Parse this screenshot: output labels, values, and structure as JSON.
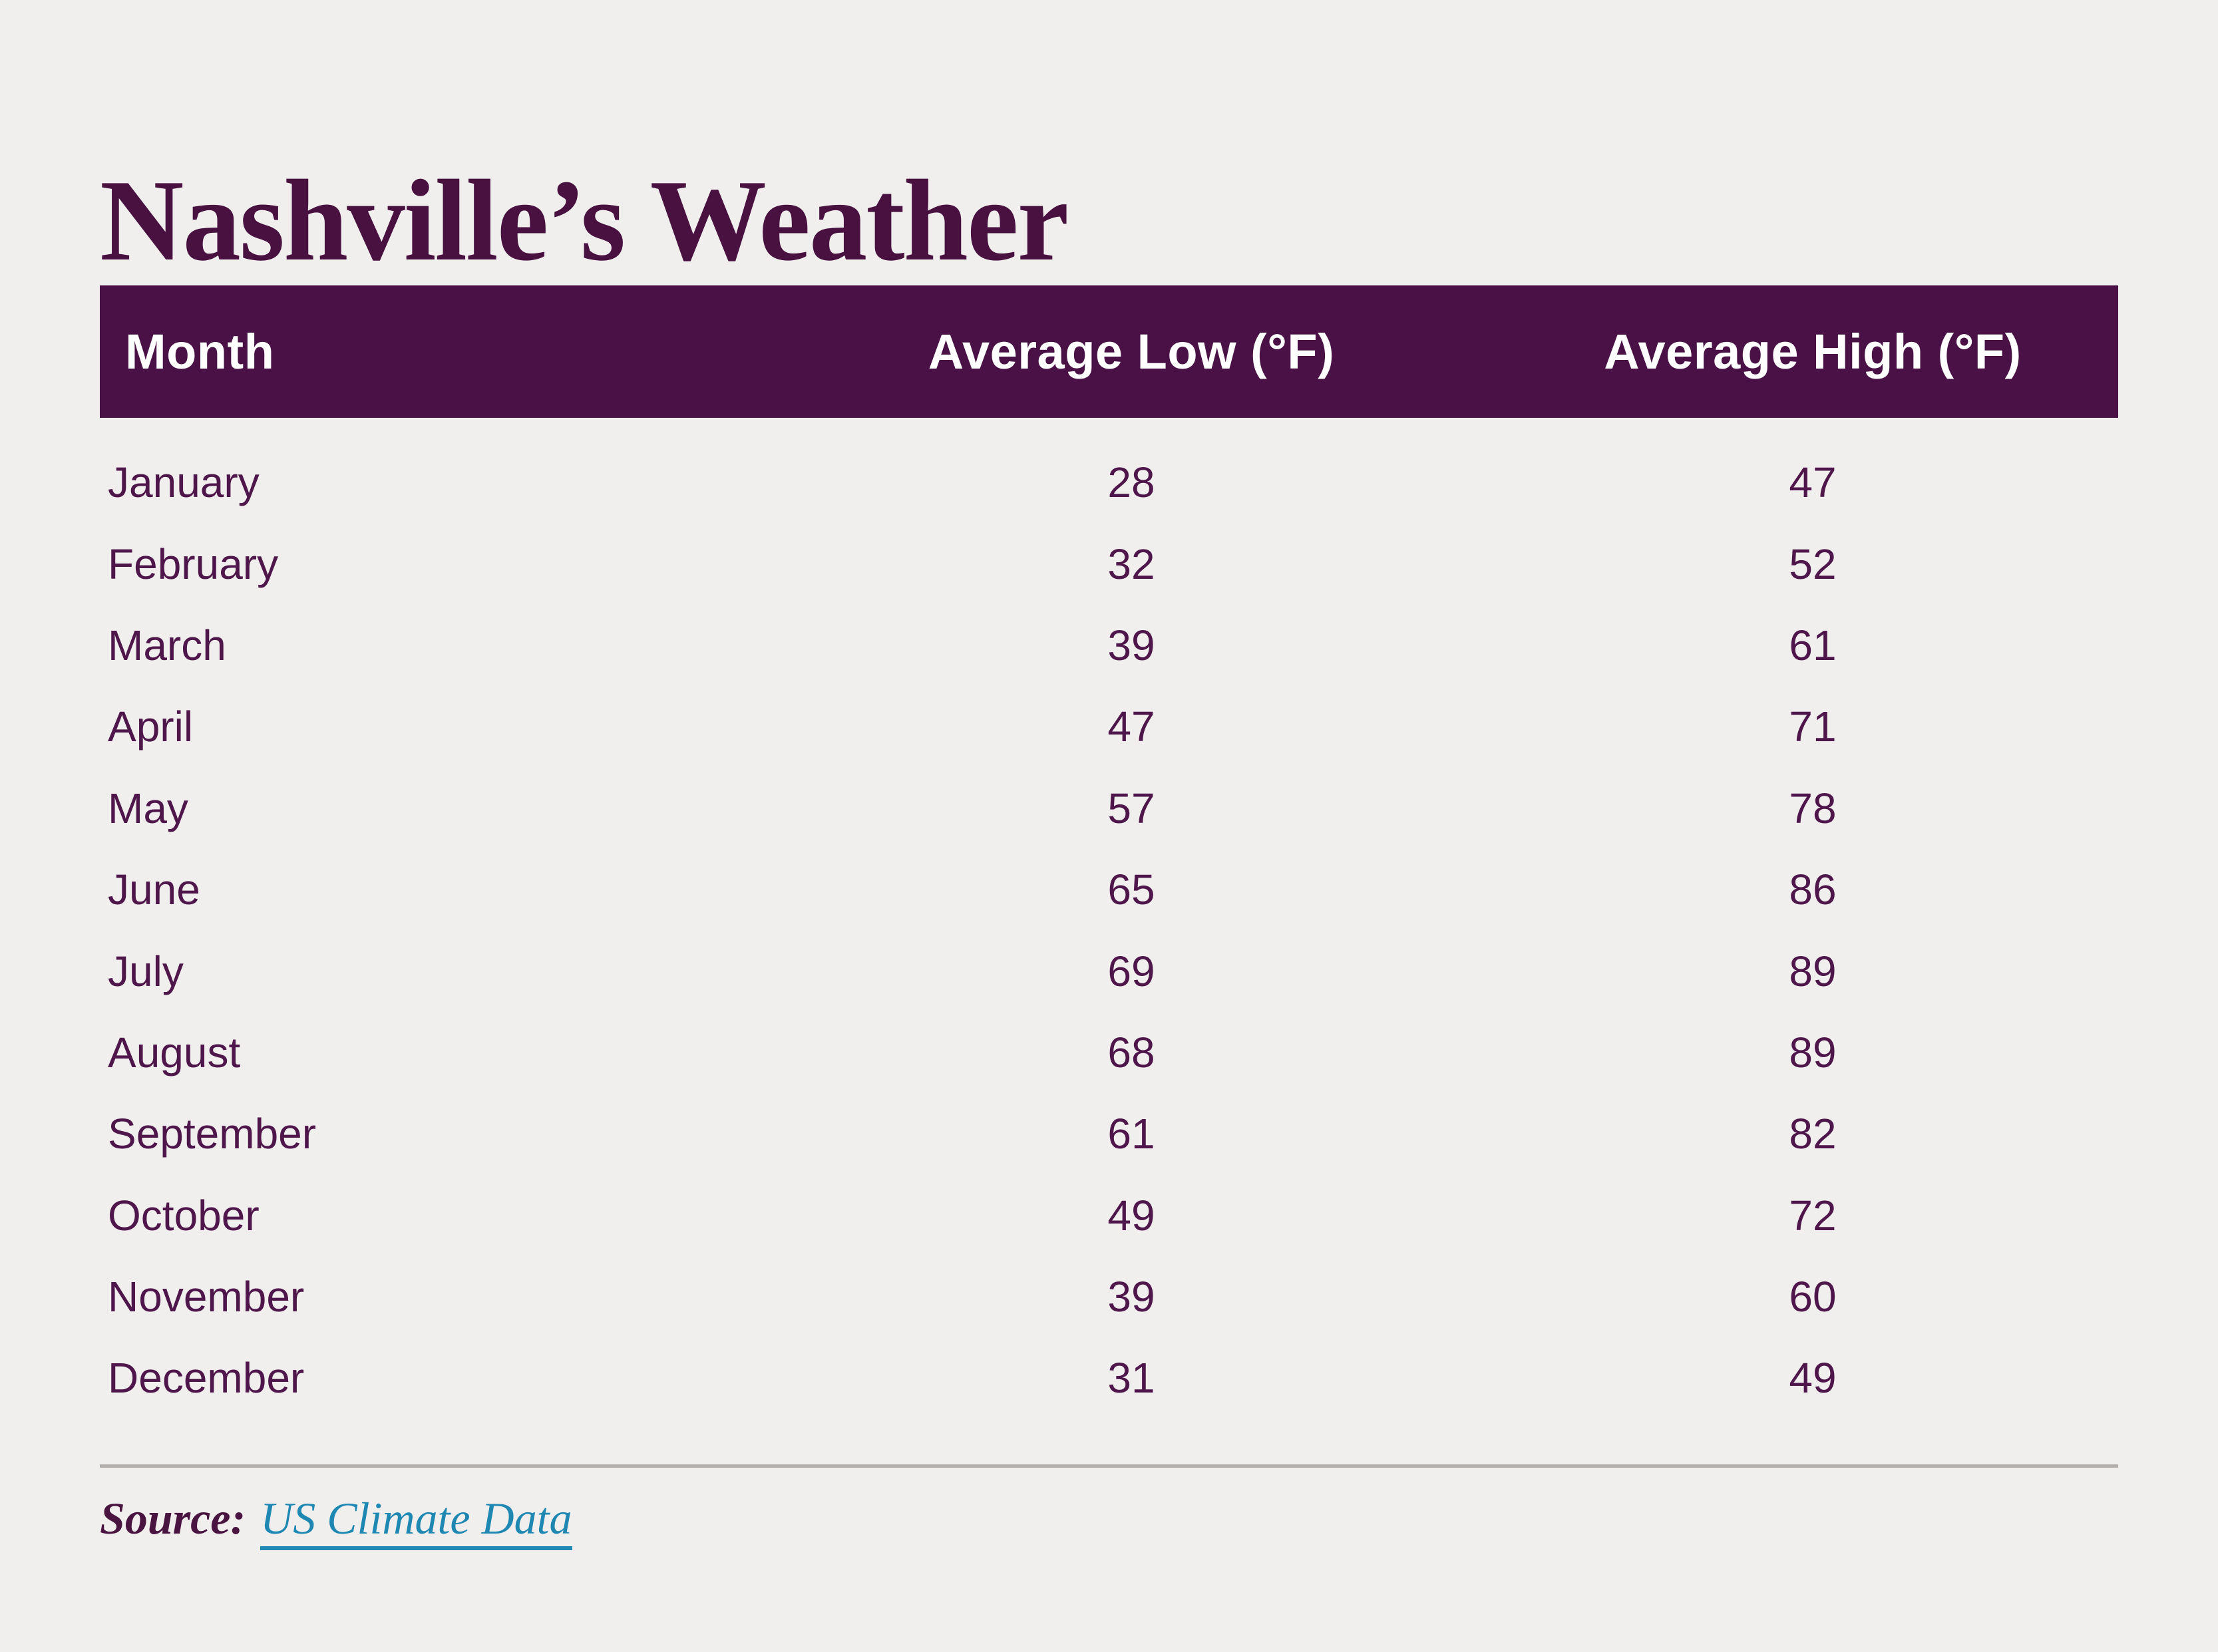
{
  "page": {
    "background": "#f0efee",
    "accent_purple": "#491145",
    "text_purple": "#4e164a",
    "link_teal": "#1e87b2",
    "divider_gray": "#b1aeac"
  },
  "title": "Nashville’s Weather",
  "table": {
    "columns": [
      "Month",
      "Average Low (°F)",
      "Average High (°F)"
    ],
    "rows": [
      {
        "month": "January",
        "low": "28",
        "high": "47"
      },
      {
        "month": "February",
        "low": "32",
        "high": "52"
      },
      {
        "month": "March",
        "low": "39",
        "high": "61"
      },
      {
        "month": "April",
        "low": "47",
        "high": "71"
      },
      {
        "month": "May",
        "low": "57",
        "high": "78"
      },
      {
        "month": "June",
        "low": "65",
        "high": "86"
      },
      {
        "month": "July",
        "low": "69",
        "high": "89"
      },
      {
        "month": "August",
        "low": "68",
        "high": "89"
      },
      {
        "month": "September",
        "low": "61",
        "high": "82"
      },
      {
        "month": "October",
        "low": "49",
        "high": "72"
      },
      {
        "month": "November",
        "low": "39",
        "high": "60"
      },
      {
        "month": "December",
        "low": "31",
        "high": "49"
      }
    ]
  },
  "footer": {
    "source_label": "Source:",
    "source_link": "US Climate Data"
  },
  "chart_data": {
    "type": "table",
    "title": "Nashville’s Weather",
    "categories": [
      "January",
      "February",
      "March",
      "April",
      "May",
      "June",
      "July",
      "August",
      "September",
      "October",
      "November",
      "December"
    ],
    "series": [
      {
        "name": "Average Low (°F)",
        "values": [
          28,
          32,
          39,
          47,
          57,
          65,
          69,
          68,
          61,
          49,
          39,
          31
        ]
      },
      {
        "name": "Average High (°F)",
        "values": [
          47,
          52,
          61,
          71,
          78,
          86,
          89,
          89,
          82,
          72,
          60,
          49
        ]
      }
    ],
    "source": "US Climate Data"
  }
}
